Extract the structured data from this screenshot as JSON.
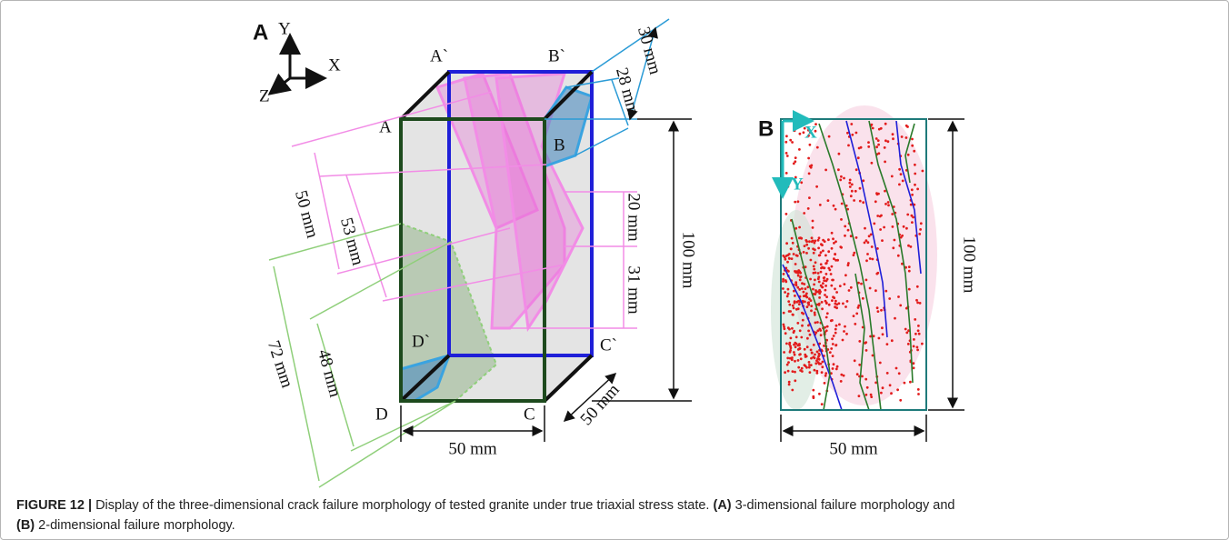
{
  "panel_a": {
    "label": "A",
    "axes": {
      "y": "Y",
      "x": "X",
      "z": "Z"
    },
    "vertices": {
      "a_prime": "A`",
      "b_prime": "B`",
      "a": "A",
      "b": "B",
      "d_prime": "D`",
      "c_prime": "C`",
      "d": "D",
      "c": "C"
    },
    "dimensions": {
      "top_outer": "30 mm",
      "top_inner": "28 mm",
      "left_outer_pink": "50 mm",
      "left_inner_pink": "53 mm",
      "right_upper": "20 mm",
      "right_lower": "31 mm",
      "height": "100 mm",
      "left_outer_green": "72 mm",
      "left_inner_green": "48 mm",
      "width": "50 mm",
      "depth": "50 mm"
    }
  },
  "panel_b": {
    "label": "B",
    "axes": {
      "x": "X",
      "y": "Y"
    },
    "dimensions": {
      "height": "100 mm",
      "width": "50 mm"
    }
  },
  "caption": {
    "label": "FIGURE 12 |",
    "text": "Display of the three-dimensional crack failure morphology of tested granite under true triaxial stress state.",
    "part_a_label": "(A)",
    "part_a_text": "3-dimensional failure morphology and",
    "part_b_label": "(B)",
    "part_b_text": "2-dimensional failure morphology."
  }
}
